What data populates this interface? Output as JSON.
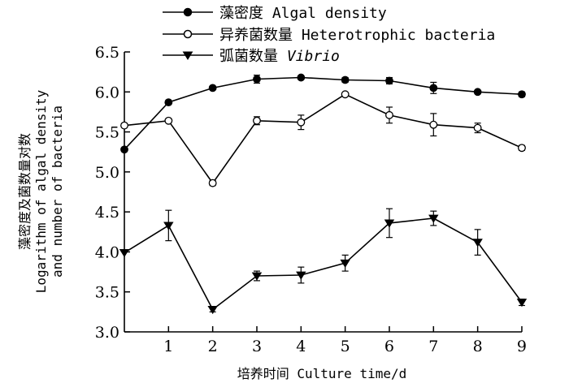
{
  "chart_data": {
    "type": "line",
    "x": [
      0,
      1,
      2,
      3,
      4,
      5,
      6,
      7,
      8,
      9
    ],
    "xlabel": "培养时间 Culture time/d",
    "ylabel_line1": "藻密度及菌数量对数",
    "ylabel_line2": "Logarithm of algal density",
    "ylabel_line3": "and number of bacteria",
    "ylim": [
      3.0,
      6.5
    ],
    "yticks": [
      "3.0",
      "3.5",
      "4.0",
      "4.5",
      "5.0",
      "5.5",
      "6.0",
      "6.5"
    ],
    "xticks": [
      "1",
      "2",
      "3",
      "4",
      "5",
      "6",
      "7",
      "8",
      "9"
    ],
    "legend_position": "top",
    "series": [
      {
        "name": "藻密度 Algal density",
        "marker": "filled-circle",
        "values": [
          5.28,
          5.87,
          6.05,
          6.16,
          6.18,
          6.15,
          6.14,
          6.05,
          6.0,
          5.97
        ],
        "errors": [
          0.0,
          0.02,
          0.02,
          0.05,
          0.02,
          0.03,
          0.04,
          0.07,
          0.02,
          0.03
        ]
      },
      {
        "name": "异养菌数量 Heterotrophic bacteria",
        "marker": "open-circle",
        "values": [
          5.58,
          5.64,
          4.86,
          5.64,
          5.62,
          5.97,
          5.71,
          5.59,
          5.55,
          5.3
        ],
        "errors": [
          0.0,
          0.02,
          0.03,
          0.05,
          0.09,
          0.02,
          0.1,
          0.14,
          0.06,
          0.03
        ]
      },
      {
        "name_cn": "弧菌数量",
        "name_en": "Vibrio",
        "marker": "filled-triangle-down",
        "values": [
          3.99,
          4.33,
          3.28,
          3.7,
          3.71,
          3.86,
          4.36,
          4.42,
          4.12,
          3.37
        ],
        "errors": [
          0.0,
          0.19,
          0.03,
          0.06,
          0.1,
          0.1,
          0.18,
          0.09,
          0.16,
          0.04
        ]
      }
    ]
  }
}
